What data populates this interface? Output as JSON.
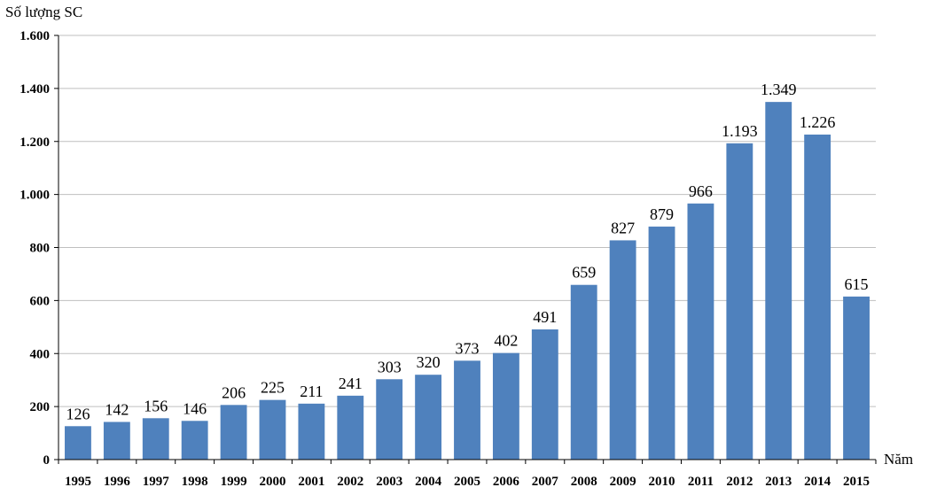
{
  "chart_data": {
    "type": "bar",
    "title": "",
    "ylabel": "Số lượng SC",
    "xlabel": "Năm",
    "categories": [
      "1995",
      "1996",
      "1997",
      "1998",
      "1999",
      "2000",
      "2001",
      "2002",
      "2003",
      "2004",
      "2005",
      "2006",
      "2007",
      "2008",
      "2009",
      "2010",
      "2011",
      "2012",
      "2013",
      "2014",
      "2015"
    ],
    "values": [
      126,
      142,
      156,
      146,
      206,
      225,
      211,
      241,
      303,
      320,
      373,
      402,
      491,
      659,
      827,
      879,
      966,
      1193,
      1349,
      1226,
      615
    ],
    "data_labels": [
      "126",
      "142",
      "156",
      "146",
      "206",
      "225",
      "211",
      "241",
      "303",
      "320",
      "373",
      "402",
      "491",
      "659",
      "827",
      "879",
      "966",
      "1.193",
      "1.349",
      "1.226",
      "615"
    ],
    "yticks": [
      0,
      200,
      400,
      600,
      800,
      1000,
      1200,
      1400,
      1600
    ],
    "ytick_labels": [
      "0",
      "200",
      "400",
      "600",
      "800",
      "1.000",
      "1.200",
      "1.400",
      "1.600"
    ],
    "ylim": [
      0,
      1600
    ],
    "grid": true,
    "bar_color": "#4f81bd"
  }
}
